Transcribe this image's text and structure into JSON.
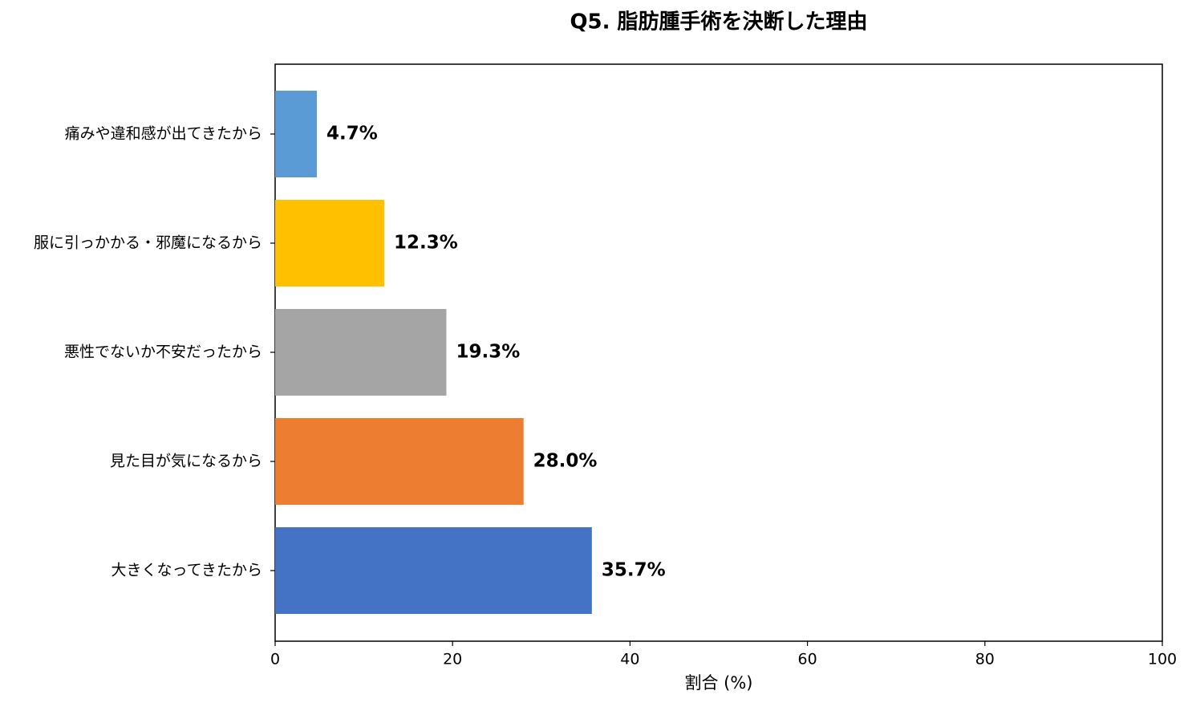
{
  "chart_data": {
    "type": "barh",
    "title": "Q5. 脂肪腫手術を決断した理由",
    "xlabel": "割合 (%)",
    "categories": [
      "大きくなってきたから",
      "見た目が気になるから",
      "悪性でないか不安だったから",
      "服に引っかかる・邪魔になるから",
      "痛みや違和感が出てきたから"
    ],
    "values": [
      35.7,
      28.0,
      19.3,
      12.3,
      4.7
    ],
    "value_labels": [
      "35.7%",
      "28.0%",
      "19.3%",
      "12.3%",
      "4.7%"
    ],
    "colors": [
      "#4472c4",
      "#ed7d31",
      "#a5a5a5",
      "#ffc000",
      "#5b9bd5"
    ],
    "xlim": [
      0,
      100
    ],
    "xticks": [
      0,
      20,
      40,
      60,
      80,
      100
    ],
    "grid": false
  }
}
